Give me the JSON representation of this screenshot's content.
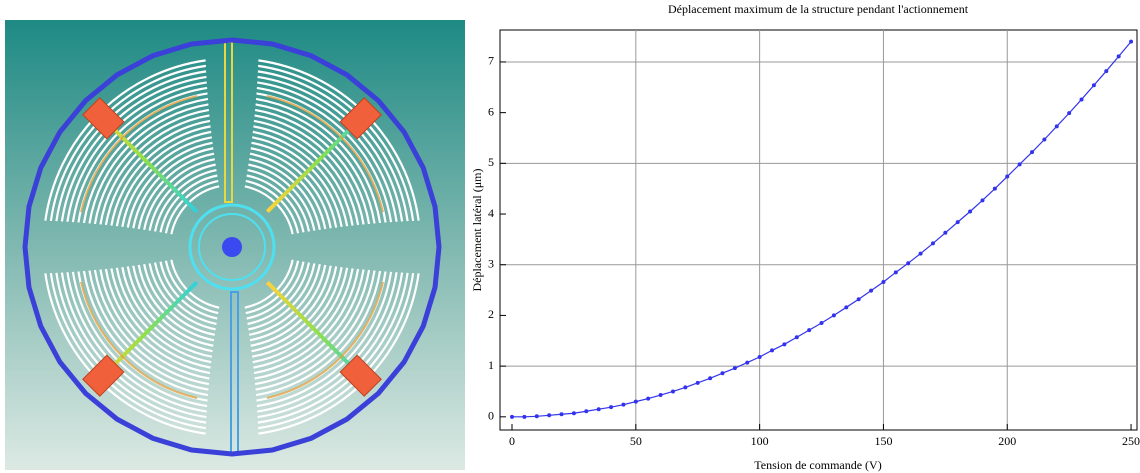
{
  "chart_data": {
    "type": "line",
    "title": "Déplacement maximum de la structure pendant l'actionnement",
    "x_label": "Tension de commande (V)",
    "y_label": "Déplacement latéral (μm)",
    "x": [
      0,
      5,
      10,
      15,
      20,
      25,
      30,
      35,
      40,
      45,
      50,
      55,
      60,
      65,
      70,
      75,
      80,
      85,
      90,
      95,
      100,
      105,
      110,
      115,
      120,
      125,
      130,
      135,
      140,
      145,
      150,
      155,
      160,
      165,
      170,
      175,
      180,
      185,
      190,
      195,
      200,
      205,
      210,
      215,
      220,
      225,
      230,
      235,
      240,
      245,
      250
    ],
    "series": [
      {
        "color": "#3333ee",
        "values": [
          0,
          0.0,
          0.01,
          0.03,
          0.05,
          0.07,
          0.11,
          0.15,
          0.19,
          0.24,
          0.3,
          0.36,
          0.43,
          0.5,
          0.58,
          0.67,
          0.76,
          0.86,
          0.96,
          1.07,
          1.18,
          1.31,
          1.43,
          1.57,
          1.71,
          1.85,
          2.0,
          2.16,
          2.32,
          2.49,
          2.66,
          2.85,
          3.03,
          3.22,
          3.42,
          3.63,
          3.84,
          4.05,
          4.27,
          4.5,
          4.74,
          4.98,
          5.22,
          5.47,
          5.73,
          5.99,
          6.26,
          6.54,
          6.82,
          7.11,
          7.4
        ]
      }
    ],
    "xlim": [
      -4.85,
      252.4
    ],
    "ylim": [
      -0.26,
      7.63
    ],
    "xticks": [
      0,
      50,
      100,
      150,
      200,
      250
    ],
    "yticks": [
      0,
      1,
      2,
      3,
      4,
      5,
      6,
      7
    ],
    "xgrid": [
      50,
      100,
      150,
      200
    ],
    "ygrid": [
      1,
      3,
      5,
      7
    ],
    "grid": true
  }
}
